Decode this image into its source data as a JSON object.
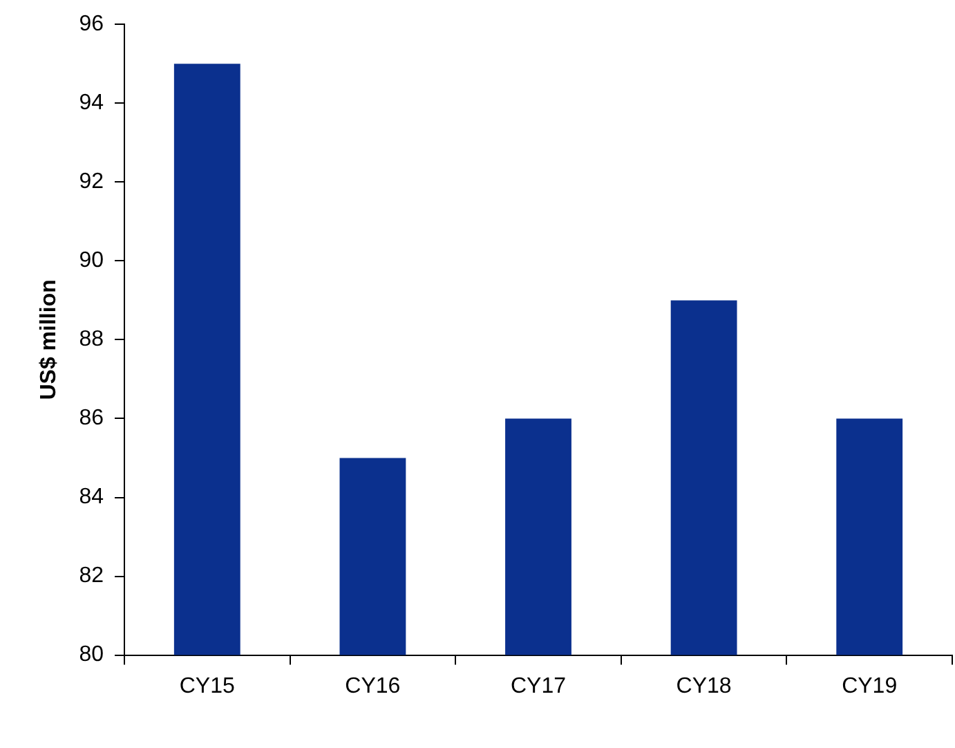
{
  "chart_data": {
    "type": "bar",
    "ylabel": "US$ million",
    "categories": [
      "CY15",
      "CY16",
      "CY17",
      "CY18",
      "CY19"
    ],
    "values": [
      95,
      85,
      86,
      89,
      86
    ],
    "color": "#0b308e",
    "ylim": [
      80,
      96
    ],
    "yticks": [
      80,
      82,
      84,
      86,
      88,
      90,
      92,
      94,
      96
    ],
    "grid": false,
    "legend": false
  }
}
